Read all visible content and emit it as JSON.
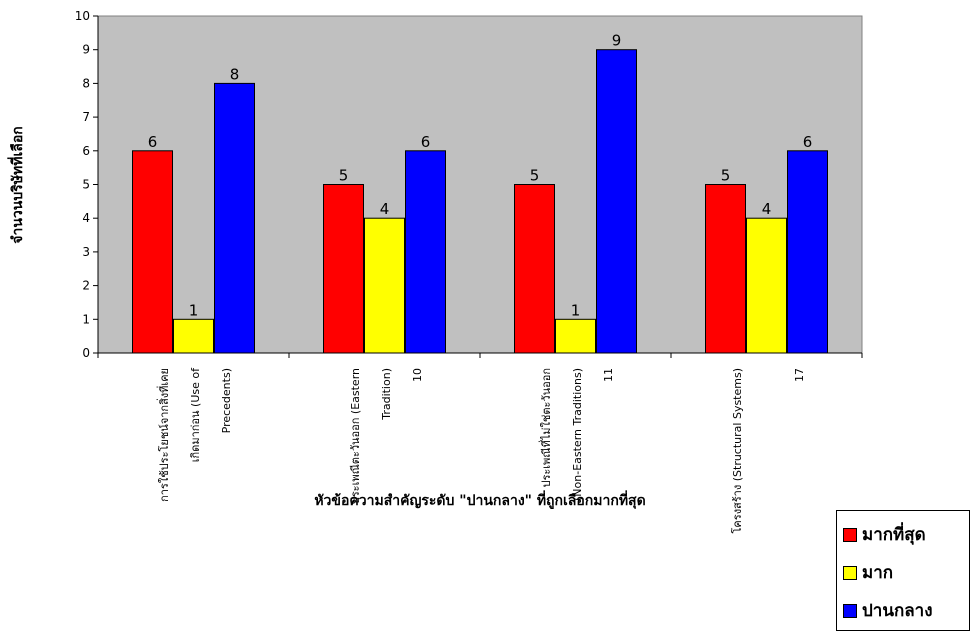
{
  "chart_data": {
    "type": "bar",
    "categories": [
      "การใช้ประโยชน์จากสิ่งที่เคยเกิดมาก่อน (Use of Precedents)",
      "ประเพณีตะวันออก (Eastern Tradition) 10",
      "ประเพณีที่ไม่ใช่ตะวันออก (Non-Eastern Traditions) 11",
      "โครงสร้าง (Structural Systems) 17"
    ],
    "category_lines": [
      [
        "การใช้ประโยชน์จากสิ่งที่เคย",
        "เกิดมาก่อน (Use of",
        "Precedents)"
      ],
      [
        "ประเพณีตะวันออก (Eastern",
        "Tradition)",
        "10"
      ],
      [
        "ประเพณีที่ไม่ใช่ตะวันออก",
        "(Non-Eastern Traditions)",
        "11"
      ],
      [
        "โครงสร้าง (Structural Systems)",
        "",
        "17"
      ]
    ],
    "series": [
      {
        "name": "มากที่สุด",
        "color": "#ff0000",
        "values": [
          6,
          5,
          5,
          5
        ]
      },
      {
        "name": "มาก",
        "color": "#ffff00",
        "values": [
          1,
          4,
          1,
          4
        ]
      },
      {
        "name": "ปานกลาง",
        "color": "#0000ff",
        "values": [
          8,
          6,
          9,
          6
        ]
      }
    ],
    "xlabel": "หัวข้อความสำคัญระดับ \"ปานกลาง\" ที่ถูกเลือกมากที่สุด",
    "ylabel": "จำนวนบริษัทที่เลือก",
    "ylim": [
      0,
      10
    ],
    "yticks": [
      0,
      1,
      2,
      3,
      4,
      5,
      6,
      7,
      8,
      9,
      10
    ],
    "grid": false,
    "plot_background": "#c0c0c0",
    "legend_position": "bottom-right"
  }
}
